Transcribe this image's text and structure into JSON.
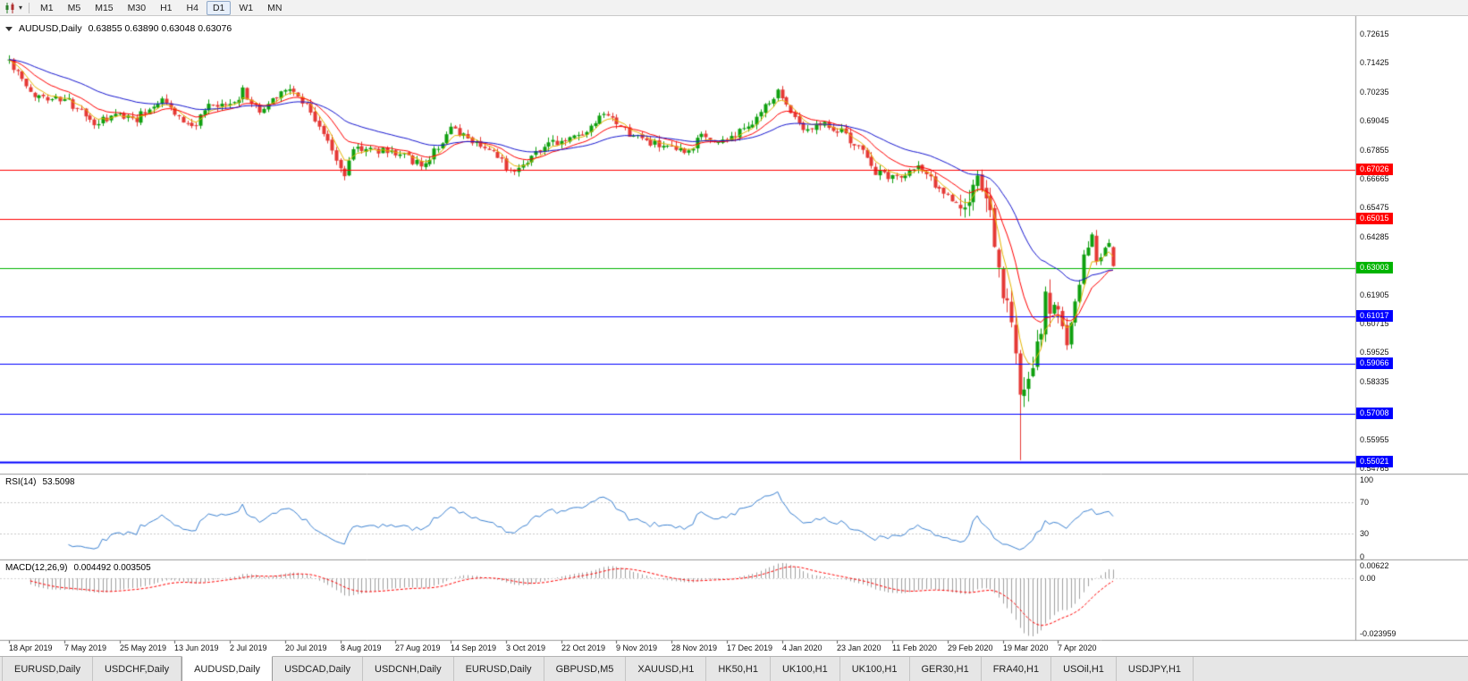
{
  "toolbar": {
    "timeframes": [
      {
        "label": "M1",
        "active": false
      },
      {
        "label": "M5",
        "active": false
      },
      {
        "label": "M15",
        "active": false
      },
      {
        "label": "M30",
        "active": false
      },
      {
        "label": "H1",
        "active": false
      },
      {
        "label": "H4",
        "active": false
      },
      {
        "label": "D1",
        "active": true
      },
      {
        "label": "W1",
        "active": false
      },
      {
        "label": "MN",
        "active": false
      }
    ]
  },
  "chart": {
    "title_symbol": "AUDUSD,Daily",
    "title_ohlc": "0.63855 0.63890 0.63048 0.63076"
  },
  "chart_data": {
    "type": "candlestick",
    "symbol": "AUDUSD",
    "timeframe": "Daily",
    "current_candle": {
      "open": 0.63855,
      "high": 0.6389,
      "low": 0.63048,
      "close": 0.63076
    },
    "price_axis_labels": [
      "0.72615",
      "0.71425",
      "0.70235",
      "0.69045",
      "0.67855",
      "0.66665",
      "0.65475",
      "0.64285",
      "0.63095",
      "0.61905",
      "0.60715",
      "0.59525",
      "0.58335",
      "0.57145",
      "0.55955",
      "0.54765"
    ],
    "horizontal_lines": [
      {
        "price": 0.67026,
        "label": "0.67026",
        "color": "#ff0000",
        "width": 1
      },
      {
        "price": 0.65015,
        "label": "0.65015",
        "color": "#ff0000",
        "width": 1
      },
      {
        "price": 0.63003,
        "label": "0.63003",
        "color": "#00b400",
        "width": 1
      },
      {
        "price": 0.61017,
        "label": "0.61017",
        "color": "#0000ff",
        "width": 1
      },
      {
        "price": 0.59066,
        "label": "0.59066",
        "color": "#0000ff",
        "width": 1
      },
      {
        "price": 0.57008,
        "label": "0.57008",
        "color": "#0000ff",
        "width": 1
      },
      {
        "price": 0.55021,
        "label": "0.55021",
        "color": "#0000ff",
        "width": 2
      }
    ],
    "date_axis_labels": [
      "18 Apr 2019",
      "7 May 2019",
      "25 May 2019",
      "13 Jun 2019",
      "2 Jul 2019",
      "20 Jul 2019",
      "8 Aug 2019",
      "27 Aug 2019",
      "14 Sep 2019",
      "3 Oct 2019",
      "22 Oct 2019",
      "9 Nov 2019",
      "28 Nov 2019",
      "17 Dec 2019",
      "4 Jan 2020",
      "23 Jan 2020",
      "11 Feb 2020",
      "29 Feb 2020",
      "19 Mar 2020",
      "7 Apr 2020"
    ],
    "num_candles": 261,
    "seed": 42,
    "close_waypoints": [
      [
        0,
        0.7153
      ],
      [
        5,
        0.7012
      ],
      [
        10,
        0.7002
      ],
      [
        14,
        0.6982
      ],
      [
        20,
        0.6892
      ],
      [
        26,
        0.6928
      ],
      [
        30,
        0.6916
      ],
      [
        36,
        0.7
      ],
      [
        40,
        0.6918
      ],
      [
        43,
        0.6876
      ],
      [
        47,
        0.6958
      ],
      [
        52,
        0.6968
      ],
      [
        55,
        0.7026
      ],
      [
        59,
        0.6938
      ],
      [
        65,
        0.7046
      ],
      [
        70,
        0.6976
      ],
      [
        74,
        0.6848
      ],
      [
        79,
        0.668
      ],
      [
        81,
        0.6795
      ],
      [
        88,
        0.6782
      ],
      [
        93,
        0.6772
      ],
      [
        97,
        0.6712
      ],
      [
        104,
        0.6866
      ],
      [
        108,
        0.6832
      ],
      [
        112,
        0.6802
      ],
      [
        118,
        0.6702
      ],
      [
        121,
        0.6732
      ],
      [
        125,
        0.6792
      ],
      [
        130,
        0.6822
      ],
      [
        136,
        0.6852
      ],
      [
        140,
        0.6928
      ],
      [
        145,
        0.6862
      ],
      [
        150,
        0.6822
      ],
      [
        155,
        0.6788
      ],
      [
        160,
        0.6768
      ],
      [
        163,
        0.6848
      ],
      [
        167,
        0.6812
      ],
      [
        172,
        0.6856
      ],
      [
        175,
        0.69
      ],
      [
        181,
        0.702
      ],
      [
        184,
        0.6952
      ],
      [
        187,
        0.6872
      ],
      [
        192,
        0.6902
      ],
      [
        197,
        0.6846
      ],
      [
        202,
        0.6762
      ],
      [
        204,
        0.6692
      ],
      [
        209,
        0.6672
      ],
      [
        214,
        0.6716
      ],
      [
        219,
        0.6626
      ],
      [
        223,
        0.6562
      ],
      [
        224,
        0.6516
      ],
      [
        227,
        0.6626
      ],
      [
        229,
        0.6642
      ],
      [
        231,
        0.6502
      ],
      [
        233,
        0.6292
      ],
      [
        235,
        0.6122
      ],
      [
        237,
        0.5972
      ],
      [
        238,
        0.5742
      ],
      [
        240,
        0.5832
      ],
      [
        242,
        0.5962
      ],
      [
        244,
        0.6168
      ],
      [
        246,
        0.6142
      ],
      [
        249,
        0.5996
      ],
      [
        251,
        0.6164
      ],
      [
        252,
        0.6232
      ],
      [
        253,
        0.6346
      ],
      [
        254,
        0.6392
      ],
      [
        255,
        0.6436
      ],
      [
        256,
        0.6326
      ],
      [
        257,
        0.6356
      ],
      [
        258,
        0.6366
      ],
      [
        259,
        0.6386
      ],
      [
        260,
        0.63076
      ]
    ],
    "volatility_segments": [
      {
        "from": 0,
        "to": 223,
        "vol": 0.0034
      },
      {
        "from": 224,
        "to": 248,
        "vol": 0.0095
      },
      {
        "from": 249,
        "to": 260,
        "vol": 0.005
      }
    ],
    "special_lows": [
      {
        "index": 238,
        "low": 0.551
      }
    ],
    "moving_averages": [
      {
        "period": 5,
        "color": "#e6b400",
        "width": 1
      },
      {
        "period": 13,
        "color": "#ff0000",
        "width": 1
      },
      {
        "period": 34,
        "color": "#1515d0",
        "width": 1
      }
    ],
    "candle_colors": {
      "up": "#0fa00f",
      "down": "#e53935"
    },
    "rsi": {
      "label": "RSI(14)",
      "value": "53.5098",
      "period": 14,
      "color": "#3c82d2",
      "levels": [
        70,
        30
      ],
      "axis_labels": [
        {
          "v": 100,
          "label": "100"
        },
        {
          "v": 70,
          "label": "70"
        },
        {
          "v": 30,
          "label": "30"
        },
        {
          "v": 0,
          "label": "0"
        }
      ]
    },
    "macd": {
      "label": "MACD(12,26,9)",
      "values": "0.004492 0.003505",
      "fast": 12,
      "slow": 26,
      "signal_period": 9,
      "histogram_color": "#a0a0a0",
      "signal_color": "#ff0000",
      "axis_labels": [
        {
          "v": 0.00622,
          "label": "0.00622"
        },
        {
          "v": 0,
          "label": "0.00"
        },
        {
          "v": -0.023959,
          "label": "-0.023959"
        }
      ]
    }
  },
  "tabs": [
    {
      "label": "EURUSD,Daily",
      "active": false
    },
    {
      "label": "USDCHF,Daily",
      "active": false
    },
    {
      "label": "AUDUSD,Daily",
      "active": true
    },
    {
      "label": "USDCAD,Daily",
      "active": false
    },
    {
      "label": "USDCNH,Daily",
      "active": false
    },
    {
      "label": "EURUSD,Daily",
      "active": false
    },
    {
      "label": "GBPUSD,M5",
      "active": false
    },
    {
      "label": "XAUUSD,H1",
      "active": false
    },
    {
      "label": "HK50,H1",
      "active": false
    },
    {
      "label": "UK100,H1",
      "active": false
    },
    {
      "label": "UK100,H1",
      "active": false
    },
    {
      "label": "GER30,H1",
      "active": false
    },
    {
      "label": "FRA40,H1",
      "active": false
    },
    {
      "label": "USOil,H1",
      "active": false
    },
    {
      "label": "USDJPY,H1",
      "active": false
    }
  ]
}
